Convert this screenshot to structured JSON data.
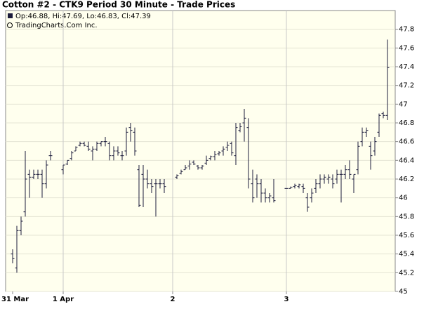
{
  "chart_data": {
    "type": "ohlc",
    "title": "Cotton #2 - CTK9 Period 30 Minute - Trade Prices",
    "legend_text": "Op:46.88, Hi:47.69, Lo:46.83, Cl:47.39",
    "subtitle": "TradingCharts.Com Inc.",
    "color": "#1c1c3c",
    "categories": [
      "31 Mar",
      null,
      null,
      null,
      null,
      null,
      null,
      null,
      null,
      null,
      null,
      null,
      "1 Apr",
      null,
      null,
      null,
      null,
      null,
      null,
      null,
      null,
      null,
      null,
      null,
      null,
      null,
      null,
      null,
      null,
      null,
      null,
      null,
      null,
      null,
      null,
      null,
      null,
      null,
      "2",
      null,
      null,
      null,
      null,
      null,
      null,
      null,
      null,
      null,
      null,
      null,
      null,
      null,
      null,
      null,
      null,
      null,
      null,
      null,
      null,
      null,
      null,
      null,
      null,
      null,
      null,
      "3",
      null,
      null,
      null,
      null,
      null,
      null,
      null,
      null,
      null,
      null,
      null,
      null,
      null,
      null,
      null,
      null,
      null,
      null,
      null,
      null,
      null,
      null,
      null,
      null
    ],
    "open": [
      45.4,
      45.25,
      45.65,
      45.85,
      46.25,
      46.22,
      46.25,
      46.25,
      46.15,
      46.45,
      null,
      null,
      46.3,
      46.36,
      46.42,
      46.5,
      46.56,
      46.58,
      46.55,
      46.5,
      46.52,
      46.58,
      46.6,
      46.58,
      46.45,
      46.5,
      46.45,
      46.5,
      46.75,
      46.7,
      46.3,
      46.25,
      46.2,
      46.15,
      46.15,
      46.15,
      46.15,
      null,
      null,
      46.22,
      46.26,
      46.3,
      46.34,
      46.38,
      46.34,
      46.32,
      46.37,
      46.42,
      46.44,
      46.47,
      46.5,
      46.54,
      46.58,
      46.45,
      46.72,
      46.8,
      46.75,
      46.15,
      46.2,
      46.15,
      46.05,
      46.0,
      46.0,
      null,
      null,
      46.1,
      46.1,
      46.12,
      46.12,
      46.12,
      46.0,
      46.0,
      46.1,
      46.15,
      46.2,
      46.2,
      46.2,
      46.2,
      46.25,
      46.25,
      46.3,
      46.2,
      46.3,
      46.6,
      46.7,
      46.55,
      46.5,
      46.7,
      46.9,
      46.88
    ],
    "high": [
      45.45,
      45.7,
      45.8,
      46.5,
      46.3,
      46.3,
      46.3,
      46.3,
      46.4,
      46.5,
      null,
      null,
      46.35,
      46.4,
      46.5,
      46.55,
      46.6,
      46.6,
      46.6,
      46.55,
      46.6,
      46.6,
      46.65,
      46.6,
      46.55,
      46.55,
      46.5,
      46.75,
      46.8,
      46.75,
      46.35,
      46.35,
      46.3,
      46.2,
      46.2,
      46.2,
      46.2,
      null,
      null,
      46.25,
      46.3,
      46.35,
      46.4,
      46.4,
      46.35,
      46.35,
      46.45,
      46.45,
      46.5,
      46.5,
      46.55,
      46.6,
      46.6,
      46.8,
      46.8,
      46.95,
      46.85,
      46.3,
      46.25,
      46.2,
      46.1,
      46.05,
      46.2,
      null,
      null,
      46.1,
      46.12,
      46.15,
      46.15,
      46.15,
      46.05,
      46.1,
      46.2,
      46.25,
      46.25,
      46.25,
      46.25,
      46.3,
      46.3,
      46.35,
      46.4,
      46.25,
      46.6,
      46.75,
      46.75,
      46.6,
      46.65,
      46.9,
      46.92,
      47.69
    ],
    "low": [
      45.3,
      45.2,
      45.6,
      45.8,
      46.0,
      46.2,
      46.2,
      46.0,
      46.1,
      46.4,
      null,
      null,
      46.25,
      46.35,
      46.4,
      46.5,
      46.55,
      46.55,
      46.5,
      46.4,
      46.5,
      46.55,
      46.55,
      46.4,
      46.4,
      46.45,
      46.4,
      46.45,
      46.6,
      46.45,
      45.9,
      45.9,
      46.1,
      46.05,
      45.8,
      46.1,
      46.05,
      null,
      null,
      46.2,
      46.25,
      46.3,
      46.3,
      46.35,
      46.3,
      46.3,
      46.35,
      46.4,
      46.4,
      46.45,
      46.45,
      46.5,
      46.45,
      46.35,
      46.7,
      46.6,
      46.1,
      45.95,
      46.0,
      45.95,
      45.95,
      45.95,
      45.95,
      null,
      null,
      46.1,
      46.1,
      46.1,
      46.1,
      46.05,
      45.85,
      45.95,
      46.05,
      46.1,
      46.15,
      46.15,
      46.1,
      46.15,
      45.95,
      46.2,
      46.2,
      46.05,
      46.25,
      46.55,
      46.65,
      46.3,
      46.45,
      46.65,
      46.85,
      46.83
    ],
    "close": [
      45.35,
      45.65,
      45.75,
      46.2,
      46.22,
      46.25,
      46.25,
      46.15,
      46.35,
      46.45,
      null,
      null,
      46.35,
      46.4,
      46.48,
      46.54,
      46.58,
      46.56,
      46.52,
      46.52,
      46.58,
      46.6,
      46.6,
      46.45,
      46.5,
      46.48,
      46.45,
      46.7,
      46.72,
      46.5,
      45.92,
      46.2,
      46.15,
      46.12,
      46.15,
      46.15,
      46.12,
      null,
      null,
      46.24,
      46.28,
      46.32,
      46.36,
      46.36,
      46.32,
      46.34,
      46.4,
      46.44,
      46.46,
      46.48,
      46.52,
      46.56,
      46.48,
      46.75,
      46.76,
      46.85,
      46.2,
      46.0,
      46.15,
      46.05,
      46.0,
      46.02,
      45.97,
      null,
      null,
      46.1,
      46.11,
      46.13,
      46.14,
      46.1,
      45.9,
      46.05,
      46.15,
      46.2,
      46.22,
      46.22,
      46.15,
      46.25,
      46.25,
      46.3,
      46.25,
      46.25,
      46.55,
      46.7,
      46.72,
      46.45,
      46.6,
      46.88,
      46.88,
      47.39
    ],
    "ylim": [
      45,
      48
    ],
    "yticks": [
      45,
      {
        "value": 45.2,
        "label": "45.2"
      },
      {
        "value": 45.4,
        "label": "45.4"
      },
      {
        "value": 45.6,
        "label": "45.6"
      },
      {
        "value": 45.8,
        "label": "45.8"
      },
      46,
      {
        "value": 46.2,
        "label": "46.2"
      },
      {
        "value": 46.4,
        "label": "46.4"
      },
      {
        "value": 46.6,
        "label": "46.6"
      },
      {
        "value": 46.8,
        "label": "46.8"
      },
      47,
      {
        "value": 47.2,
        "label": "47.2"
      },
      {
        "value": 47.4,
        "label": "47.4"
      },
      {
        "value": 47.6,
        "label": "47.6"
      },
      {
        "value": 47.8,
        "label": "47.8"
      }
    ],
    "grid": true
  }
}
